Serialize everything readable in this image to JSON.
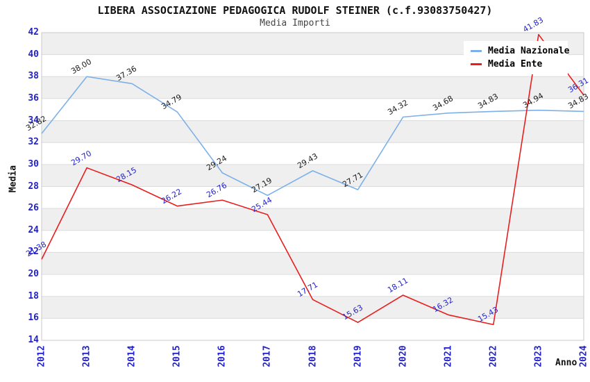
{
  "chart_data": {
    "type": "line",
    "title": "LIBERA ASSOCIAZIONE PEDAGOGICA RUDOLF STEINER (c.f.93083750427)",
    "subtitle": "Media Importi",
    "xlabel": "Anno",
    "ylabel": "Media",
    "categories": [
      "2012",
      "2013",
      "2014",
      "2015",
      "2016",
      "2017",
      "2018",
      "2019",
      "2020",
      "2021",
      "2022",
      "2023",
      "2024"
    ],
    "series": [
      {
        "name": "Media Nazionale",
        "color": "#7cb0e8",
        "label_color": "#1a1a1a",
        "values": [
          32.82,
          38.0,
          37.36,
          34.79,
          29.24,
          27.19,
          29.43,
          27.71,
          34.32,
          34.68,
          34.83,
          34.94,
          34.83
        ]
      },
      {
        "name": "Media Ente",
        "color": "#e81d1d",
        "label_color": "#2222cc",
        "values": [
          21.38,
          29.7,
          28.15,
          26.22,
          26.76,
          25.44,
          17.71,
          15.63,
          18.11,
          16.32,
          15.43,
          41.83,
          36.31
        ]
      }
    ],
    "ylim": [
      14,
      42
    ],
    "ytick_step": 2,
    "grid": "horizontal-bands",
    "legend_position": "top-right",
    "colors": {
      "band": "#efefef",
      "grid": "#dcdcdc",
      "border": "#c8c8c8",
      "tick_label": "#2222cc"
    }
  }
}
